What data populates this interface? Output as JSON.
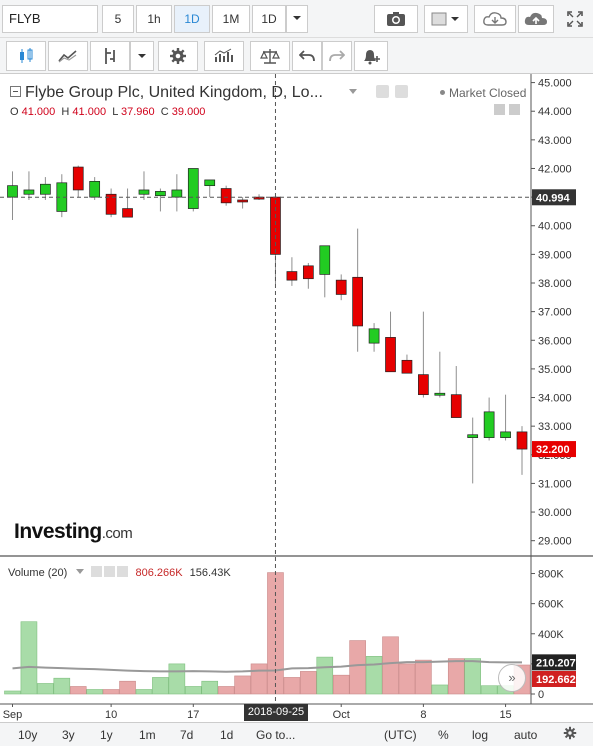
{
  "toolbar": {
    "symbol": "FLYB",
    "intervals": [
      "5",
      "1h",
      "1D",
      "1M",
      "1D"
    ],
    "active_interval_index": 2
  },
  "legend": {
    "title": "Flybe Group Plc, United Kingdom, D, Lo...",
    "open_label": "O",
    "open": "41.000",
    "high_label": "H",
    "high": "41.000",
    "low_label": "L",
    "low": "37.960",
    "close_label": "C",
    "close": "39.000",
    "market_status": "Market Closed"
  },
  "volume_pane": {
    "label": "Volume (20)",
    "value1": "806.266K",
    "value2": "156.43K",
    "axis_ticks": [
      "800K",
      "600K",
      "400K",
      "200K",
      "0"
    ],
    "tags": {
      "ma": "210.207K",
      "last": "192.662K"
    }
  },
  "price_axis": {
    "ticks": [
      "45.000",
      "44.000",
      "43.000",
      "42.000",
      "41.000",
      "40.000",
      "39.000",
      "38.000",
      "37.000",
      "36.000",
      "35.000",
      "34.000",
      "33.000",
      "32.000",
      "31.000",
      "30.000",
      "29.000"
    ],
    "crosshair_value": "40.994",
    "last_price": "32.200"
  },
  "time_axis": {
    "labels": [
      "Sep",
      "10",
      "17",
      "Oct",
      "8",
      "15"
    ],
    "crosshair_date": "2018-09-25"
  },
  "brand": {
    "name": "Investing",
    "suffix": ".com"
  },
  "bottom_bar": {
    "ranges": [
      "10y",
      "3y",
      "1y",
      "1m",
      "7d",
      "1d",
      "Go to..."
    ],
    "timezone": "(UTC)",
    "options": [
      "%",
      "log",
      "auto"
    ]
  },
  "colors": {
    "up": "#22cc22",
    "down": "#e60000",
    "up_vol": "#a8dca8",
    "down_vol": "#e8a8a8",
    "ma": "#999999",
    "accent": "#2a88d4"
  },
  "chart_data": {
    "type": "candlestick",
    "title": "Flybe Group Plc, United Kingdom, D, Lo...",
    "ylim": [
      28.5,
      45.3
    ],
    "volume_ylim": [
      0,
      850000
    ],
    "candles": [
      {
        "date": "2018-08-31",
        "open": 41.0,
        "high": 41.9,
        "low": 40.2,
        "close": 41.4,
        "volume": 20000,
        "vol_ma": 170000
      },
      {
        "date": "2018-09-03",
        "open": 41.1,
        "high": 41.9,
        "low": 40.9,
        "close": 41.25,
        "volume": 480000,
        "vol_ma": 180000
      },
      {
        "date": "2018-09-04",
        "open": 41.1,
        "high": 41.7,
        "low": 40.9,
        "close": 41.45,
        "volume": 70000,
        "vol_ma": 175000
      },
      {
        "date": "2018-09-05",
        "open": 40.5,
        "high": 41.8,
        "low": 40.3,
        "close": 41.5,
        "volume": 105000,
        "vol_ma": 172000
      },
      {
        "date": "2018-09-06",
        "open": 42.05,
        "high": 42.1,
        "low": 41.0,
        "close": 41.25,
        "volume": 50000,
        "vol_ma": 168000
      },
      {
        "date": "2018-09-07",
        "open": 41.0,
        "high": 41.7,
        "low": 40.9,
        "close": 41.55,
        "volume": 30000,
        "vol_ma": 165000
      },
      {
        "date": "2018-09-10",
        "open": 41.1,
        "high": 41.3,
        "low": 40.3,
        "close": 40.4,
        "volume": 30000,
        "vol_ma": 160000
      },
      {
        "date": "2018-09-11",
        "open": 40.6,
        "high": 41.3,
        "low": 40.3,
        "close": 40.3,
        "volume": 85000,
        "vol_ma": 155000
      },
      {
        "date": "2018-09-12",
        "open": 41.1,
        "high": 41.9,
        "low": 40.9,
        "close": 41.25,
        "volume": 30000,
        "vol_ma": 152000
      },
      {
        "date": "2018-09-13",
        "open": 41.05,
        "high": 41.3,
        "low": 40.5,
        "close": 41.2,
        "volume": 110000,
        "vol_ma": 150000
      },
      {
        "date": "2018-09-14",
        "open": 41.0,
        "high": 41.8,
        "low": 40.5,
        "close": 41.25,
        "volume": 200000,
        "vol_ma": 150000
      },
      {
        "date": "2018-09-17",
        "open": 40.6,
        "high": 42.0,
        "low": 40.5,
        "close": 42.0,
        "volume": 50000,
        "vol_ma": 152000
      },
      {
        "date": "2018-09-18",
        "open": 41.4,
        "high": 41.6,
        "low": 41.0,
        "close": 41.6,
        "volume": 85000,
        "vol_ma": 150000
      },
      {
        "date": "2018-09-19",
        "open": 41.3,
        "high": 41.4,
        "low": 40.7,
        "close": 40.8,
        "volume": 50000,
        "vol_ma": 148000
      },
      {
        "date": "2018-09-20",
        "open": 40.9,
        "high": 41.0,
        "low": 40.6,
        "close": 40.85,
        "volume": 120000,
        "vol_ma": 150000
      },
      {
        "date": "2018-09-21",
        "open": 41.0,
        "high": 41.1,
        "low": 40.9,
        "close": 40.95,
        "volume": 200000,
        "vol_ma": 155000
      },
      {
        "date": "2018-09-25",
        "open": 41.0,
        "high": 41.0,
        "low": 37.96,
        "close": 39.0,
        "volume": 806266,
        "vol_ma": 156430
      },
      {
        "date": "2018-09-26",
        "open": 38.4,
        "high": 38.9,
        "low": 37.9,
        "close": 38.1,
        "volume": 110000,
        "vol_ma": 170000
      },
      {
        "date": "2018-09-27",
        "open": 38.6,
        "high": 38.7,
        "low": 37.8,
        "close": 38.15,
        "volume": 150000,
        "vol_ma": 172000
      },
      {
        "date": "2018-09-28",
        "open": 38.3,
        "high": 39.2,
        "low": 37.5,
        "close": 39.3,
        "volume": 245000,
        "vol_ma": 178000
      },
      {
        "date": "2018-10-01",
        "open": 38.1,
        "high": 38.3,
        "low": 37.4,
        "close": 37.6,
        "volume": 125000,
        "vol_ma": 182000
      },
      {
        "date": "2018-10-02",
        "open": 38.2,
        "high": 39.9,
        "low": 35.6,
        "close": 36.5,
        "volume": 355000,
        "vol_ma": 192000
      },
      {
        "date": "2018-10-03",
        "open": 35.9,
        "high": 36.6,
        "low": 35.6,
        "close": 36.4,
        "volume": 250000,
        "vol_ma": 196000
      },
      {
        "date": "2018-10-04",
        "open": 36.1,
        "high": 37.0,
        "low": 34.9,
        "close": 34.9,
        "volume": 380000,
        "vol_ma": 205000
      },
      {
        "date": "2018-10-05",
        "open": 35.3,
        "high": 35.5,
        "low": 34.9,
        "close": 34.85,
        "volume": 200000,
        "vol_ma": 212000
      },
      {
        "date": "2018-10-08",
        "open": 34.8,
        "high": 37.0,
        "low": 34.0,
        "close": 34.1,
        "volume": 225000,
        "vol_ma": 212000
      },
      {
        "date": "2018-10-09",
        "open": 34.1,
        "high": 35.6,
        "low": 34.0,
        "close": 34.15,
        "volume": 60000,
        "vol_ma": 215000
      },
      {
        "date": "2018-10-10",
        "open": 34.1,
        "high": 35.1,
        "low": 33.3,
        "close": 33.3,
        "volume": 235000,
        "vol_ma": 218000
      },
      {
        "date": "2018-10-11",
        "open": 32.6,
        "high": 33.3,
        "low": 31.0,
        "close": 32.7,
        "volume": 235000,
        "vol_ma": 218000
      },
      {
        "date": "2018-10-12",
        "open": 32.6,
        "high": 34.0,
        "low": 32.5,
        "close": 33.5,
        "volume": 55000,
        "vol_ma": 212000
      },
      {
        "date": "2018-10-15",
        "open": 32.6,
        "high": 34.1,
        "low": 32.5,
        "close": 32.8,
        "volume": 55000,
        "vol_ma": 210207
      },
      {
        "date": "2018-10-16",
        "open": 32.8,
        "high": 33.0,
        "low": 31.3,
        "close": 32.2,
        "volume": 192662,
        "vol_ma": 210207
      }
    ]
  }
}
